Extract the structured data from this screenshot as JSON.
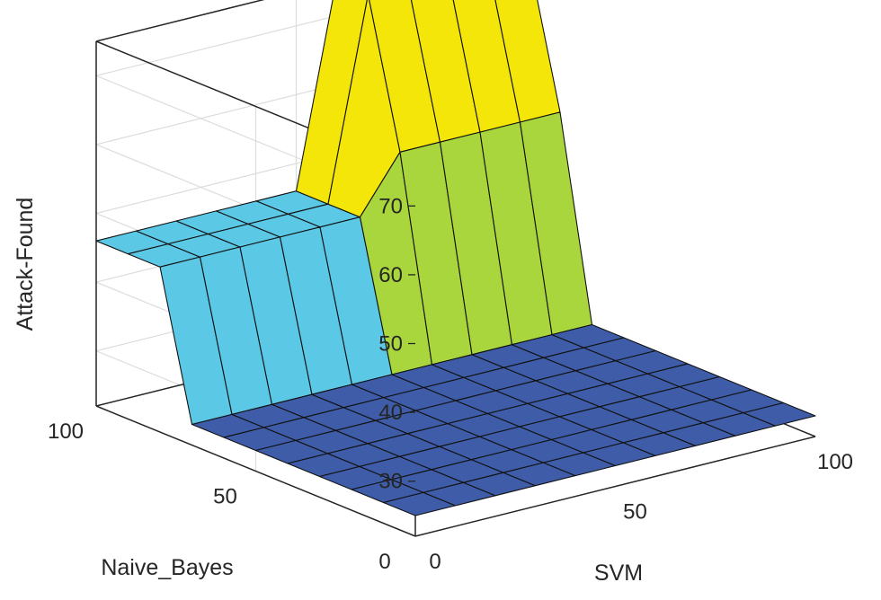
{
  "chart_data": {
    "type": "surface",
    "title": "",
    "xlabel": "SVM",
    "ylabel": "Naive_Bayes",
    "zlabel": "Attack-Found",
    "xlim": [
      0,
      100
    ],
    "ylim": [
      0,
      100
    ],
    "zlim": [
      22,
      75
    ],
    "x_ticks": [
      0,
      50,
      100
    ],
    "x_tick_labels": [
      "0",
      "50",
      "100"
    ],
    "y_ticks": [
      0,
      50,
      100
    ],
    "y_tick_labels": [
      "0",
      "50",
      "100"
    ],
    "z_ticks": [
      30,
      40,
      50,
      60,
      70
    ],
    "z_tick_labels": [
      "30",
      "40",
      "50",
      "60",
      "70"
    ],
    "grid": true,
    "colormap": [
      "#3e5ca8",
      "#5bc8e6",
      "#a8d63c",
      "#f5e60a"
    ],
    "description_levels": {
      "base": 25,
      "svm_high_mid": 46,
      "nb_high_mid": 54,
      "both_high": 75
    },
    "surface": {
      "x": [
        0,
        10,
        20,
        30,
        40,
        50,
        60,
        70,
        80,
        90,
        100
      ],
      "y": [
        0,
        10,
        20,
        30,
        40,
        50,
        60,
        70,
        80,
        90,
        100
      ],
      "z": [
        [
          25,
          25,
          25,
          25,
          25,
          25,
          25,
          25,
          25,
          25,
          25
        ],
        [
          25,
          25,
          25,
          25,
          25,
          25,
          25,
          25,
          25,
          25,
          25
        ],
        [
          25,
          25,
          25,
          25,
          25,
          25,
          25,
          25,
          25,
          25,
          25
        ],
        [
          25,
          25,
          25,
          25,
          25,
          25,
          25,
          25,
          25,
          25,
          25
        ],
        [
          25,
          25,
          25,
          25,
          25,
          25,
          25,
          25,
          25,
          25,
          25
        ],
        [
          25,
          25,
          25,
          25,
          25,
          25,
          25,
          25,
          25,
          25,
          25
        ],
        [
          25,
          25,
          25,
          25,
          25,
          25,
          25,
          25,
          25,
          25,
          25
        ],
        [
          25,
          25,
          25,
          25,
          25,
          25,
          25,
          25,
          25,
          25,
          25
        ],
        [
          46,
          46,
          46,
          46,
          46,
          46,
          54,
          54,
          54,
          54,
          54
        ],
        [
          46,
          46,
          46,
          46,
          46,
          46,
          75,
          75,
          75,
          75,
          75
        ],
        [
          46,
          46,
          46,
          46,
          46,
          46,
          75,
          75,
          75,
          75,
          75
        ]
      ]
    }
  }
}
